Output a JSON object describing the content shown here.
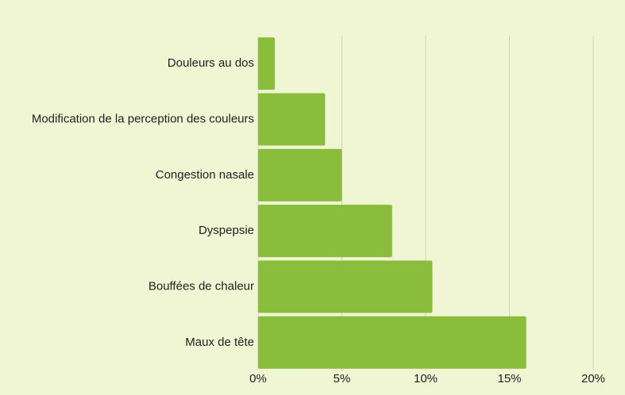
{
  "chart_data": {
    "type": "bar",
    "orientation": "horizontal",
    "categories": [
      "Douleurs au dos",
      "Modification de la perception des couleurs",
      "Congestion nasale",
      "Dyspepsie",
      "Bouffées de chaleur",
      "Maux de tête"
    ],
    "values": [
      1,
      4,
      5,
      8,
      10.4,
      16
    ],
    "color": "#8bbd3c",
    "xlim": [
      0,
      20
    ],
    "xticks": [
      {
        "value": 0,
        "label": "0%"
      },
      {
        "value": 5,
        "label": "5%"
      },
      {
        "value": 10,
        "label": "10%"
      },
      {
        "value": 15,
        "label": "15%"
      },
      {
        "value": 20,
        "label": "20%"
      }
    ],
    "grid": true
  }
}
